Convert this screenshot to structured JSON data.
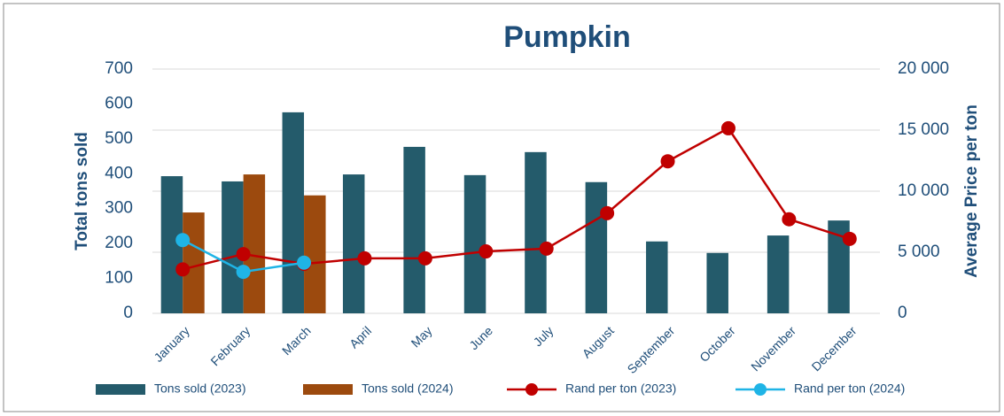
{
  "chart_data": {
    "type": "bar_line",
    "title": "Pumpkin",
    "y_label": "Total tons sold",
    "y2_label": "Average Price per ton",
    "categories": [
      "January",
      "February",
      "March",
      "April",
      "May",
      "June",
      "July",
      "August",
      "September",
      "October",
      "November",
      "December"
    ],
    "series": [
      {
        "name": "Tons sold (2023)",
        "kind": "bar",
        "color": "#245b6b",
        "values": [
          393,
          378,
          576,
          398,
          477,
          396,
          462,
          376,
          206,
          173,
          223,
          266
        ]
      },
      {
        "name": "Tons sold (2024)",
        "kind": "bar",
        "color": "#9c4a0e",
        "values": [
          289,
          398,
          338,
          null,
          null,
          null,
          null,
          null,
          null,
          null,
          null,
          null
        ]
      },
      {
        "name": "Rand per ton (2023)",
        "kind": "line",
        "axis": "y2",
        "color": "#c00000",
        "values": [
          3600,
          4850,
          4050,
          4500,
          4500,
          5070,
          5300,
          8200,
          12450,
          15150,
          7700,
          6100
        ]
      },
      {
        "name": "Rand per ton (2024)",
        "kind": "line",
        "axis": "y2",
        "color": "#1fb4e6",
        "values": [
          6000,
          3400,
          4150,
          null,
          null,
          null,
          null,
          null,
          null,
          null,
          null,
          null
        ]
      }
    ],
    "ylim": [
      0,
      700
    ],
    "yticks": [
      0,
      100,
      200,
      300,
      400,
      500,
      600,
      700
    ],
    "y2lim": [
      0,
      20000
    ],
    "y2ticks": [
      0,
      {
        "value": 5000,
        "label": "5 000"
      },
      {
        "value": 10000,
        "label": "10 000"
      },
      {
        "value": 15000,
        "label": "15 000"
      },
      {
        "value": 20000,
        "label": "20 000"
      }
    ],
    "grid": true,
    "legend": "bottom"
  }
}
